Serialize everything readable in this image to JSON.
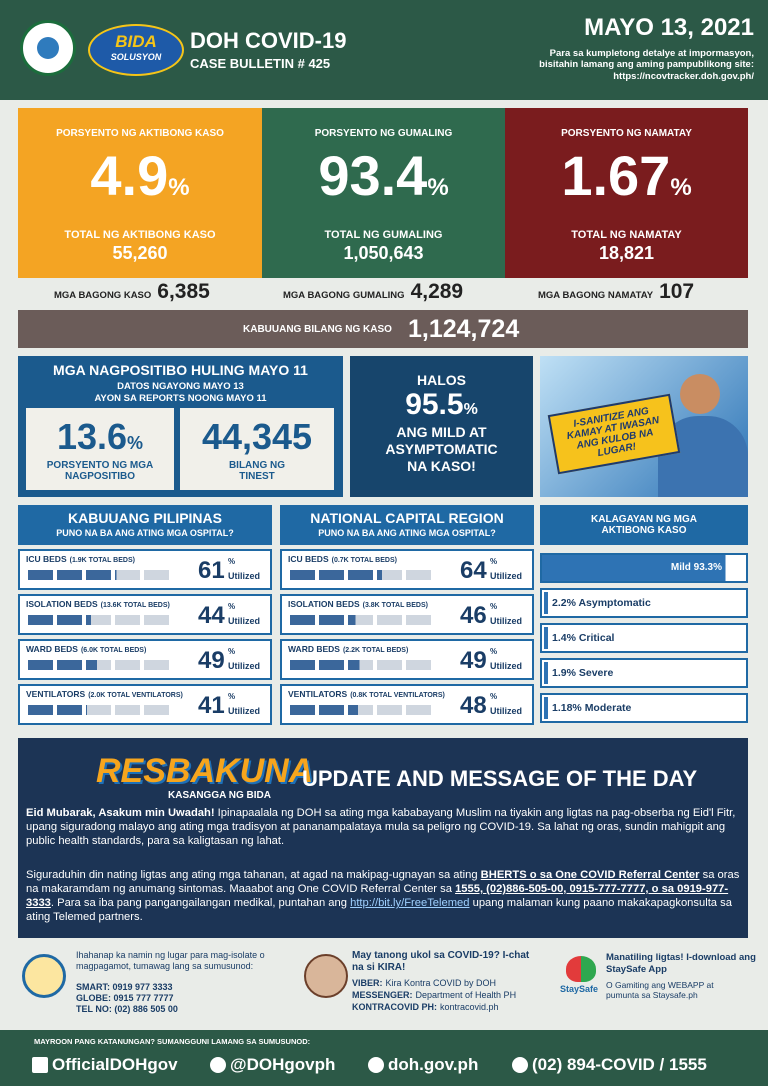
{
  "header": {
    "title": "DOH COVID-19",
    "bulletin": "CASE BULLETIN # 425",
    "date": "MAYO 13, 2021",
    "note": "Para sa kumpletong detalye at impormasyon, bisitahin lamang ang aming pampublikong site:",
    "url": "https://ncovtracker.doh.gov.ph/",
    "logo": "BIDA",
    "logo_sub": "SOLUSYON"
  },
  "cards": [
    {
      "label": "PORSYENTO NG AKTIBONG KASO",
      "value": "4.9",
      "unit": "%",
      "total_label": "TOTAL NG AKTIBONG KASO",
      "total": "55,260",
      "color": "#f4a423"
    },
    {
      "label": "PORSYENTO NG GUMALING",
      "value": "93.4",
      "unit": "%",
      "total_label": "TOTAL NG GUMALING",
      "total": "1,050,643",
      "color": "#2f6a4e"
    },
    {
      "label": "PORSYENTO NG NAMATAY",
      "value": "1.67",
      "unit": "%",
      "total_label": "TOTAL NG NAMATAY",
      "total": "18,821",
      "color": "#7a1c1e"
    }
  ],
  "new_cases": [
    {
      "label": "MGA BAGONG KASO",
      "value": "6,385"
    },
    {
      "label": "MGA BAGONG GUMALING",
      "value": "4,289"
    },
    {
      "label": "MGA BAGONG NAMATAY",
      "value": "107"
    }
  ],
  "total": {
    "label": "KABUUANG BILANG NG KASO",
    "value": "1,124,724"
  },
  "positivity": {
    "title": "MGA NAGPOSITIBO HULING MAYO 11",
    "lines": [
      "DATOS NGAYONG MAYO 13",
      "AYON SA REPORTS NOONG MAYO 11"
    ],
    "rate": {
      "value": "13.6",
      "unit": "%",
      "label": "PORSYENTO NG MGA NAGPOSITIBO"
    },
    "tested": {
      "value": "44,345",
      "label": "BILANG NG TINEST"
    }
  },
  "mild": {
    "pre": "HALOS",
    "value": "95.5",
    "unit": "%",
    "text": "ANG MILD AT ASYMPTOMATIC NA KASO!"
  },
  "poster": {
    "text": "I-SANITIZE ANG KAMAY AT IWASAN ANG KULOB NA LUGAR!"
  },
  "hospital_unit": "%",
  "hospital_suffix": "Utilized",
  "hospital": [
    {
      "title": "KABUUANG PILIPINAS",
      "subtitle": "PUNO NA BA ANG ATING MGA OSPITAL?",
      "rows": [
        {
          "label": "ICU BEDS",
          "detail": "(1.9K TOTAL BEDS)",
          "value": 61
        },
        {
          "label": "ISOLATION BEDS",
          "detail": "(13.6K TOTAL BEDS)",
          "value": 44
        },
        {
          "label": "WARD BEDS",
          "detail": "(6.0K TOTAL BEDS)",
          "value": 49
        },
        {
          "label": "VENTILATORS",
          "detail": "(2.0K TOTAL VENTILATORS)",
          "value": 41
        }
      ]
    },
    {
      "title": "NATIONAL CAPITAL REGION",
      "subtitle": "PUNO NA BA ANG ATING MGA OSPITAL?",
      "rows": [
        {
          "label": "ICU BEDS",
          "detail": "(0.7K TOTAL BEDS)",
          "value": 64
        },
        {
          "label": "ISOLATION BEDS",
          "detail": "(3.8K TOTAL BEDS)",
          "value": 46
        },
        {
          "label": "WARD BEDS",
          "detail": "(2.2K TOTAL BEDS)",
          "value": 49
        },
        {
          "label": "VENTILATORS",
          "detail": "(0.8K TOTAL VENTILATORS)",
          "value": 48
        }
      ]
    }
  ],
  "status": {
    "title": "KALAGAYAN NG MGA AKTIBONG KASO",
    "items": [
      "Mild 93.3%",
      "2.2% Asymptomatic",
      "1.4% Critical",
      "1.9% Severe",
      "1.18% Moderate"
    ]
  },
  "message": {
    "brand": "RESBAKUNA",
    "tagline": "KASANGGA NG BIDA",
    "heading": "UPDATE AND MESSAGE OF THE DAY",
    "paragraphs": [
      [
        {
          "text": "Eid Mubarak, Asakum min Uwadah!",
          "style": "bold"
        },
        {
          "text": " Ipinapaalala ng DOH sa ating mga kababayang Muslim na tiyakin ang ligtas na pag-obserba ng Eid'l Fitr, upang siguradong malayo ang ating mga tradisyon at pananampalataya mula sa peligro ng COVID-19. Sa lahat ng oras, sundin mahigpit ang public health standards, para sa kaligtasan ng lahat."
        }
      ],
      [
        {
          "text": "Siguraduhin din nating ligtas ang ating mga tahanan, at agad na makipag-ugnayan sa ating "
        },
        {
          "text": "BHERTS o sa One COVID Referral Center",
          "style": "underline"
        },
        {
          "text": " sa oras na makaramdam ng anumang sintomas. Maaabot ang One COVID Referral Center sa "
        },
        {
          "text": "1555, (02)886-505-00, 0915-777-7777, o sa 0919-977-3333",
          "style": "underline"
        },
        {
          "text": ". Para sa iba pang pangangailangan medikal, puntahan ang "
        },
        {
          "text": "http://bit.ly/FreeTelemed",
          "style": "link"
        },
        {
          "text": " upang malaman kung paano makakapagkonsulta sa ating Telemed partners."
        }
      ]
    ]
  },
  "contacts": [
    {
      "text": "Ihahanap ka namin ng lugar para mag-isolate o magpagamot, tumawag lang sa sumusunod:",
      "lines": [
        "SMART: 0919 977 3333",
        "GLOBE: 0915 777 7777",
        "TEL NO: (02) 886 505 00"
      ]
    },
    {
      "text": "May tanong ukol sa COVID-19? I-chat na si KIRA!",
      "lines": [
        {
          "label": "VIBER:",
          "value": "Kira Kontra COVID by DOH"
        },
        {
          "label": "MESSENGER:",
          "value": "Department of Health PH"
        },
        {
          "label": "KONTRACOVID PH:",
          "value": "kontracovid.ph"
        }
      ]
    },
    {
      "logo": "StaySafe",
      "text": "Manatiling ligtas! I-download ang StaySafe App",
      "sub": "O Gamiting ang WEBAPP at pumunta sa Staysafe.ph"
    }
  ],
  "footer": {
    "heading": "MAYROON PANG KATANUNGAN? SUMANGGUNI LAMANG SA SUMUSUNOD:",
    "links": [
      "OfficialDOHgov",
      "@DOHgovph",
      "doh.gov.ph",
      "(02) 894-COVID / 1555"
    ]
  }
}
